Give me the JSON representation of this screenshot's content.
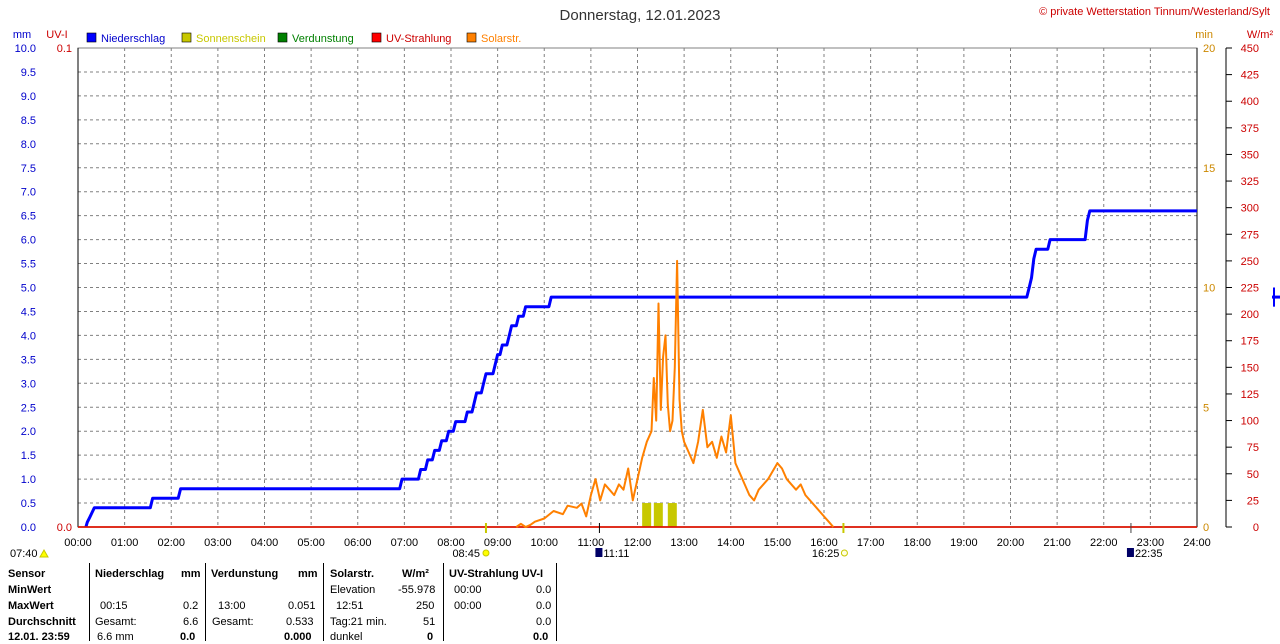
{
  "header": {
    "title": "Donnerstag, 12.01.2023",
    "copyright": "© private Wetterstation Tinnum/Westerland/Sylt"
  },
  "legend": [
    {
      "label": "Niederschlag",
      "color": "#0000ff"
    },
    {
      "label": "Sonnenschein",
      "color": "#c8c800"
    },
    {
      "label": "Verdunstung",
      "color": "#008000"
    },
    {
      "label": "UV-Strahlung",
      "color": "#ff0000"
    },
    {
      "label": "Solarstr.",
      "color": "#ff8000"
    }
  ],
  "axes": {
    "left_unit_mm": "mm",
    "left_unit_uv": "UV-I",
    "right_unit_min": "min",
    "right_unit_wm2": "W/m²",
    "uv_top": "0.1",
    "uv_bottom": "0.0",
    "mm_ticks": [
      "0.0",
      "0.5",
      "1.0",
      "1.5",
      "2.0",
      "2.5",
      "3.0",
      "3.5",
      "4.0",
      "4.5",
      "5.0",
      "5.5",
      "6.0",
      "6.5",
      "7.0",
      "7.5",
      "8.0",
      "8.5",
      "9.0",
      "9.5",
      "10.0"
    ],
    "min_ticks": [
      "0",
      "5",
      "10",
      "15",
      "20"
    ],
    "wm2_ticks": [
      "0",
      "25",
      "50",
      "75",
      "100",
      "125",
      "150",
      "175",
      "200",
      "225",
      "250",
      "275",
      "300",
      "325",
      "350",
      "375",
      "400",
      "425",
      "450"
    ],
    "time_ticks": [
      "00:00",
      "01:00",
      "02:00",
      "03:00",
      "04:00",
      "05:00",
      "06:00",
      "07:00",
      "08:00",
      "09:00",
      "10:00",
      "11:00",
      "12:00",
      "13:00",
      "14:00",
      "15:00",
      "16:00",
      "17:00",
      "18:00",
      "19:00",
      "20:00",
      "21:00",
      "22:00",
      "23:00",
      "24:00"
    ]
  },
  "markers": {
    "sunrise": "07:40",
    "civil_dawn": "08:45",
    "solar_noon": "11:11",
    "sunset": "16:25",
    "moon": "22:35"
  },
  "stats": {
    "sensor_label": "Sensor",
    "minwert_label": "MinWert",
    "maxwert_label": "MaxWert",
    "durchschnitt_label": "Durchschnitt",
    "datetime": "12.01. 23:59",
    "rain": {
      "title": "Niederschlag",
      "unit": "mm",
      "max_time": "00:15",
      "max_val": "0.2",
      "total_label": "Gesamt:",
      "total_val": "6.6",
      "last_text": "6.6 mm",
      "last_val": "0.0"
    },
    "evap": {
      "title": "Verdunstung",
      "unit": "mm",
      "max_time": "13:00",
      "max_val": "0.051",
      "total_label": "Gesamt:",
      "total_val": "0.533",
      "last_val": "0.000"
    },
    "solar": {
      "title": "Solarstr.",
      "unit": "W/m²",
      "elev_label": "Elevation",
      "elev_val": "-55.978",
      "max_time": "12:51",
      "max_val": "250",
      "tag_label": "Tag:21 min.",
      "tag_val": "51",
      "dark_label": "dunkel",
      "dark_val": "0"
    },
    "uv": {
      "title": "UV-Strahlung UV-I",
      "min_time": "00:00",
      "min_val": "0.0",
      "max_time": "00:00",
      "max_val": "0.0",
      "avg_val": "0.0",
      "last_val": "0.0"
    }
  },
  "chart_data": {
    "type": "line",
    "title": "Donnerstag, 12.01.2023",
    "x_unit": "hours",
    "xlim": [
      0,
      24
    ],
    "ylim_mm": [
      0,
      10
    ],
    "ylim_min": [
      0,
      20
    ],
    "ylim_wm2": [
      0,
      450
    ],
    "grid": true,
    "legend_position": "top-left",
    "series": [
      {
        "name": "Niederschlag",
        "axis": "mm",
        "color": "#0000ff",
        "points": [
          [
            0.17,
            0
          ],
          [
            0.2,
            0.1
          ],
          [
            0.25,
            0.2
          ],
          [
            0.3,
            0.3
          ],
          [
            0.35,
            0.4
          ],
          [
            1.55,
            0.4
          ],
          [
            1.6,
            0.6
          ],
          [
            2.15,
            0.6
          ],
          [
            2.2,
            0.8
          ],
          [
            6.9,
            0.8
          ],
          [
            6.95,
            1.0
          ],
          [
            7.3,
            1.0
          ],
          [
            7.35,
            1.2
          ],
          [
            7.45,
            1.2
          ],
          [
            7.5,
            1.4
          ],
          [
            7.6,
            1.4
          ],
          [
            7.65,
            1.6
          ],
          [
            7.75,
            1.6
          ],
          [
            7.8,
            1.8
          ],
          [
            7.9,
            1.8
          ],
          [
            7.95,
            2.0
          ],
          [
            8.05,
            2.0
          ],
          [
            8.1,
            2.2
          ],
          [
            8.3,
            2.2
          ],
          [
            8.35,
            2.4
          ],
          [
            8.45,
            2.4
          ],
          [
            8.5,
            2.6
          ],
          [
            8.55,
            2.8
          ],
          [
            8.65,
            2.8
          ],
          [
            8.7,
            3.0
          ],
          [
            8.75,
            3.2
          ],
          [
            8.9,
            3.2
          ],
          [
            8.95,
            3.4
          ],
          [
            9.0,
            3.6
          ],
          [
            9.05,
            3.6
          ],
          [
            9.1,
            3.8
          ],
          [
            9.2,
            3.8
          ],
          [
            9.25,
            4.0
          ],
          [
            9.3,
            4.2
          ],
          [
            9.4,
            4.2
          ],
          [
            9.45,
            4.4
          ],
          [
            9.55,
            4.4
          ],
          [
            9.6,
            4.6
          ],
          [
            10.1,
            4.6
          ],
          [
            10.15,
            4.8
          ],
          [
            20.35,
            4.8
          ],
          [
            20.4,
            5.0
          ],
          [
            20.45,
            5.2
          ],
          [
            20.5,
            5.6
          ],
          [
            20.55,
            5.8
          ],
          [
            20.8,
            5.8
          ],
          [
            20.85,
            6.0
          ],
          [
            21.6,
            6.0
          ],
          [
            21.65,
            6.4
          ],
          [
            21.7,
            6.6
          ],
          [
            24,
            6.6
          ]
        ]
      },
      {
        "name": "Sonnenschein",
        "axis": "min",
        "color": "#c8c800",
        "type": "bar",
        "bars": [
          [
            12.1,
            1
          ],
          [
            12.35,
            1
          ],
          [
            12.65,
            1
          ]
        ]
      },
      {
        "name": "Verdunstung",
        "axis": "mm",
        "color": "#008000",
        "points": [
          [
            0,
            0
          ],
          [
            24,
            0
          ]
        ]
      },
      {
        "name": "UV-Strahlung",
        "axis": "uv",
        "color": "#ff0000",
        "points": [
          [
            0,
            0
          ],
          [
            24,
            0
          ]
        ]
      },
      {
        "name": "Solarstr.",
        "axis": "wm2",
        "color": "#ff8000",
        "points": [
          [
            9.4,
            0
          ],
          [
            9.5,
            3
          ],
          [
            9.6,
            0
          ],
          [
            9.7,
            2
          ],
          [
            9.8,
            5
          ],
          [
            10.0,
            8
          ],
          [
            10.2,
            15
          ],
          [
            10.4,
            12
          ],
          [
            10.5,
            20
          ],
          [
            10.7,
            18
          ],
          [
            10.8,
            22
          ],
          [
            10.9,
            10
          ],
          [
            11.0,
            30
          ],
          [
            11.1,
            45
          ],
          [
            11.2,
            25
          ],
          [
            11.3,
            40
          ],
          [
            11.4,
            35
          ],
          [
            11.5,
            30
          ],
          [
            11.6,
            40
          ],
          [
            11.7,
            35
          ],
          [
            11.8,
            55
          ],
          [
            11.9,
            25
          ],
          [
            12.0,
            45
          ],
          [
            12.1,
            65
          ],
          [
            12.2,
            80
          ],
          [
            12.3,
            90
          ],
          [
            12.35,
            140
          ],
          [
            12.4,
            100
          ],
          [
            12.45,
            210
          ],
          [
            12.5,
            110
          ],
          [
            12.55,
            160
          ],
          [
            12.6,
            180
          ],
          [
            12.65,
            115
          ],
          [
            12.7,
            90
          ],
          [
            12.75,
            100
          ],
          [
            12.8,
            150
          ],
          [
            12.85,
            250
          ],
          [
            12.9,
            120
          ],
          [
            12.95,
            90
          ],
          [
            13.0,
            80
          ],
          [
            13.1,
            70
          ],
          [
            13.2,
            60
          ],
          [
            13.3,
            80
          ],
          [
            13.4,
            110
          ],
          [
            13.5,
            75
          ],
          [
            13.6,
            80
          ],
          [
            13.7,
            65
          ],
          [
            13.8,
            85
          ],
          [
            13.9,
            70
          ],
          [
            14.0,
            105
          ],
          [
            14.1,
            60
          ],
          [
            14.2,
            50
          ],
          [
            14.3,
            40
          ],
          [
            14.4,
            30
          ],
          [
            14.5,
            25
          ],
          [
            14.6,
            35
          ],
          [
            14.8,
            45
          ],
          [
            15.0,
            60
          ],
          [
            15.1,
            55
          ],
          [
            15.2,
            45
          ],
          [
            15.3,
            40
          ],
          [
            15.4,
            35
          ],
          [
            15.5,
            40
          ],
          [
            15.6,
            30
          ],
          [
            15.8,
            20
          ],
          [
            16.0,
            10
          ],
          [
            16.1,
            5
          ],
          [
            16.2,
            0
          ]
        ]
      }
    ]
  }
}
